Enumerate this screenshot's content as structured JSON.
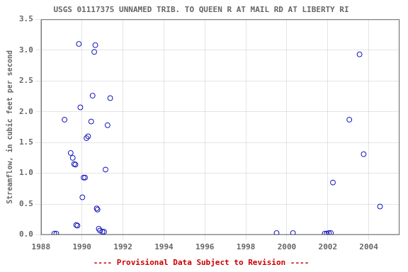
{
  "chart_data": {
    "type": "scatter",
    "title": "USGS 01117375 UNNAMED TRIB. TO QUEEN R AT MAIL RD AT LIBERTY RI",
    "ylabel": "Streamflow, in cubic feet per second",
    "annotations": [
      {
        "text": "---- Provisional Data Subject to Revision ----",
        "color": "#cc0000"
      }
    ],
    "x": [
      1988.65,
      1988.75,
      1989.15,
      1989.45,
      1989.55,
      1989.62,
      1989.68,
      1989.72,
      1989.78,
      1989.85,
      1989.92,
      1990.02,
      1990.08,
      1990.15,
      1990.22,
      1990.3,
      1990.45,
      1990.52,
      1990.6,
      1990.65,
      1990.72,
      1990.76,
      1990.82,
      1990.88,
      1991.0,
      1991.08,
      1991.15,
      1991.25,
      1991.38,
      1999.5,
      2000.3,
      2001.85,
      2001.95,
      2002.05,
      2002.15,
      2002.25,
      2003.05,
      2003.55,
      2003.75,
      2004.55
    ],
    "values": [
      0.02,
      0.02,
      1.87,
      1.33,
      1.25,
      1.15,
      1.14,
      0.16,
      0.15,
      3.1,
      2.07,
      0.61,
      0.93,
      0.93,
      1.57,
      1.6,
      1.84,
      2.26,
      2.97,
      3.08,
      0.43,
      0.41,
      0.1,
      0.07,
      0.05,
      0.05,
      1.06,
      1.78,
      2.22,
      0.03,
      0.03,
      0.02,
      0.02,
      0.03,
      0.03,
      0.85,
      1.87,
      2.93,
      1.31,
      0.46
    ],
    "color": "#0000bb",
    "marker": "open_circle",
    "xlim": [
      1988,
      2005.5
    ],
    "ylim": [
      0,
      3.5
    ],
    "xticks": [
      1988,
      1990,
      1992,
      1994,
      1996,
      1998,
      2000,
      2002,
      2004
    ],
    "yticks": [
      {
        "value": 0,
        "label": "0.0"
      },
      0.5,
      {
        "value": 1,
        "label": "1.0"
      },
      1.5,
      {
        "value": 2,
        "label": "2.0"
      },
      2.5,
      {
        "value": 3,
        "label": "3.0"
      },
      3.5
    ],
    "grid": true
  }
}
